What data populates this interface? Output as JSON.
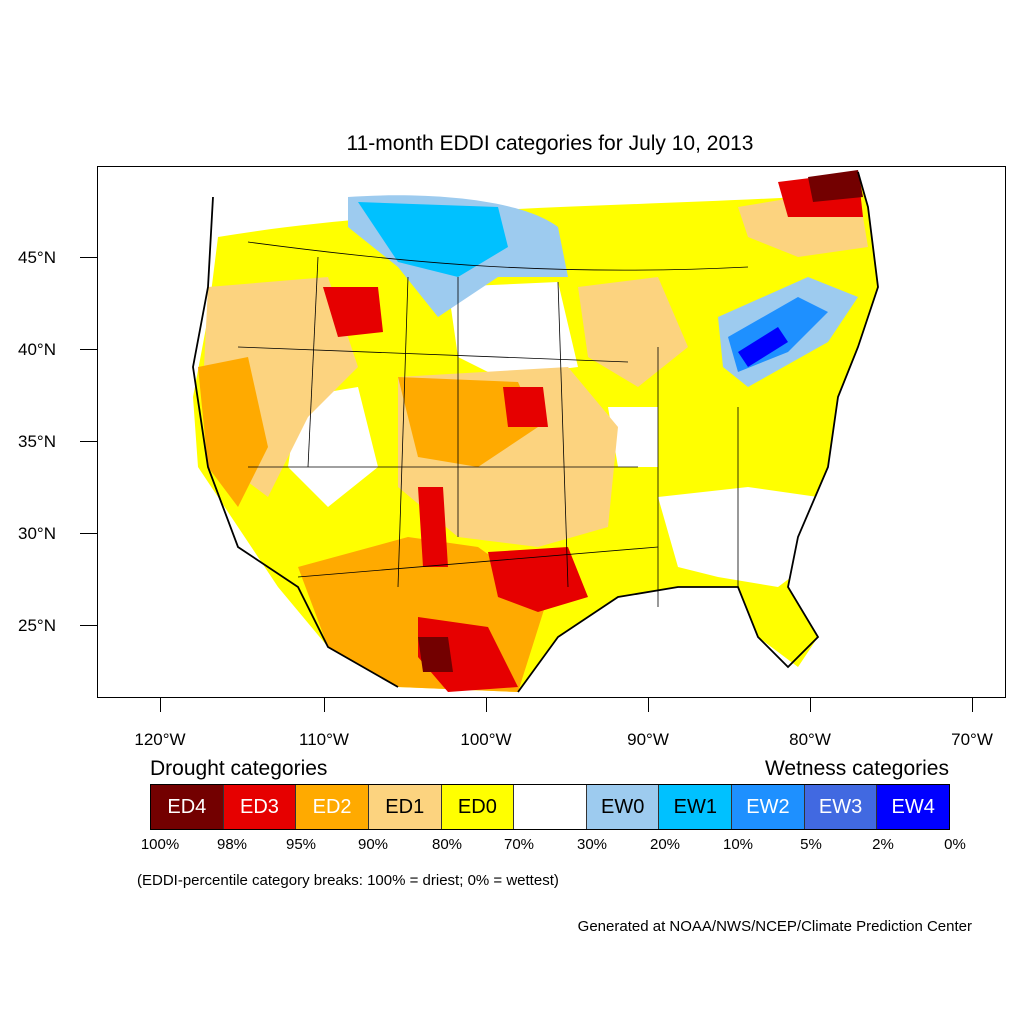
{
  "title": "11-month EDDI categories for July 10, 2013",
  "lat_labels": [
    "45°N",
    "40°N",
    "35°N",
    "30°N",
    "25°N"
  ],
  "lon_labels": [
    "120°W",
    "110°W",
    "100°W",
    "90°W",
    "80°W",
    "70°W"
  ],
  "legend": {
    "drought_heading": "Drought categories",
    "wetness_heading": "Wetness categories",
    "categories": [
      {
        "label": "ED4",
        "color": "#730000",
        "text_color": "#ffffff"
      },
      {
        "label": "ED3",
        "color": "#e60000",
        "text_color": "#ffffff"
      },
      {
        "label": "ED2",
        "color": "#ffaa00",
        "text_color": "#ffffff"
      },
      {
        "label": "ED1",
        "color": "#fcd37f",
        "text_color": "#000000"
      },
      {
        "label": "ED0",
        "color": "#ffff00",
        "text_color": "#000000"
      },
      {
        "label": "",
        "color": "#ffffff",
        "text_color": "#000000"
      },
      {
        "label": "EW0",
        "color": "#9dcbef",
        "text_color": "#000000"
      },
      {
        "label": "EW1",
        "color": "#00c1ff",
        "text_color": "#000000"
      },
      {
        "label": "EW2",
        "color": "#1e90ff",
        "text_color": "#ffffff"
      },
      {
        "label": "EW3",
        "color": "#4169e1",
        "text_color": "#ffffff"
      },
      {
        "label": "EW4",
        "color": "#0000ff",
        "text_color": "#ffffff"
      }
    ],
    "breaks": [
      "100%",
      "98%",
      "95%",
      "90%",
      "80%",
      "70%",
      "30%",
      "20%",
      "10%",
      "5%",
      "2%",
      "0%"
    ]
  },
  "note": "(EDDI-percentile category breaks: 100% = driest; 0% = wettest)",
  "credit": "Generated at NOAA/NWS/NCEP/Climate Prediction Center"
}
